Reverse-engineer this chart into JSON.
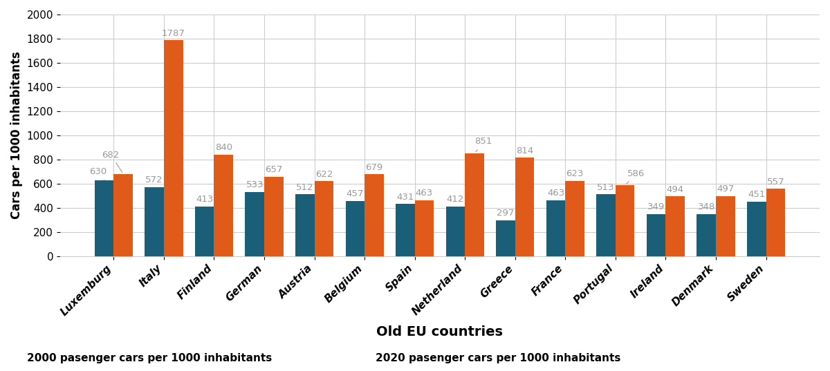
{
  "categories": [
    "Luxemburg",
    "Italy",
    "Finland",
    "German",
    "Austria",
    "Belgium",
    "Spain",
    "Netherland",
    "Greece",
    "France",
    "Portugal",
    "Ireland",
    "Denmark",
    "Sweden"
  ],
  "values_2000": [
    630,
    572,
    413,
    533,
    512,
    457,
    431,
    412,
    297,
    463,
    513,
    349,
    348,
    451
  ],
  "values_2020": [
    682,
    1787,
    840,
    657,
    622,
    679,
    463,
    851,
    814,
    623,
    586,
    494,
    497,
    557
  ],
  "color_2000": "#1a5e78",
  "color_2020": "#e05a1a",
  "ylabel": "Cars per 1000 inhabitants",
  "xlabel": "Old EU countries",
  "ylim": [
    0,
    2000
  ],
  "yticks": [
    0,
    200,
    400,
    600,
    800,
    1000,
    1200,
    1400,
    1600,
    1800,
    2000
  ],
  "legend_2000": "2000 pasenger cars per 1000 inhabitants",
  "legend_2020": "2020 pasenger cars per 1000 inhabitants",
  "bar_width": 0.38,
  "annotation_color": "#999999",
  "annotation_fontsize": 9.5,
  "figsize": [
    12.0,
    5.37
  ],
  "dpi": 100,
  "label_offsets_2000": [
    0,
    0,
    0,
    0,
    0,
    0,
    0,
    0,
    0,
    0,
    0,
    0,
    0,
    0
  ],
  "label_offsets_2020": [
    130,
    0,
    0,
    0,
    0,
    0,
    0,
    60,
    0,
    0,
    60,
    0,
    0,
    0
  ],
  "arrow_indices_2000": [
    0
  ],
  "arrow_indices_2020": [
    7,
    10
  ]
}
